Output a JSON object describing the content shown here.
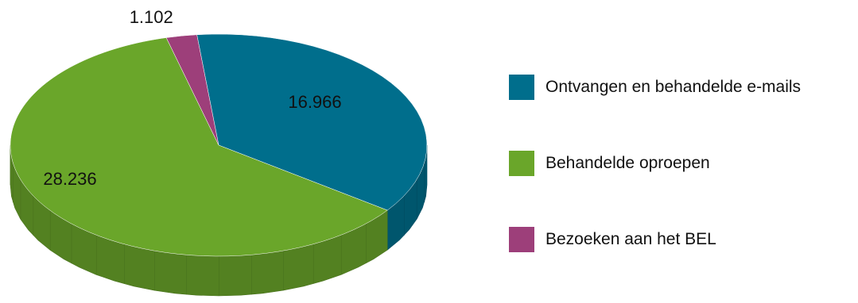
{
  "chart_data": {
    "type": "pie",
    "style": "3d",
    "slices": [
      {
        "label": "Ontvangen en behandelde e-mails",
        "value": 16966,
        "value_label": "16.966",
        "color": "#006e8c"
      },
      {
        "label": "Behandelde oproepen",
        "value": 28236,
        "value_label": "28.236",
        "color": "#6aa62a"
      },
      {
        "label": "Bezoeken aan het BEL",
        "value": 1102,
        "value_label": "1.102",
        "color": "#9d3f7a"
      }
    ],
    "legend_position": "right"
  }
}
